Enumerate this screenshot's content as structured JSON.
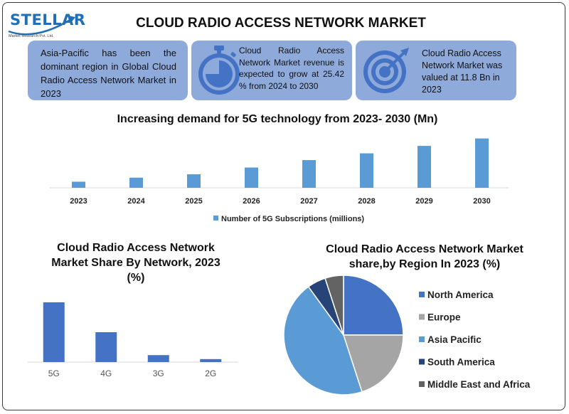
{
  "header": {
    "logo_text": "STELLAR",
    "logo_subtext": "Market Research Pvt. Ltd.",
    "title": "CLOUD RADIO ACCESS NETWORK MARKET"
  },
  "cards": [
    {
      "text": "Asia-Pacific has been the dominant region in Global Cloud Radio Access Network Market in 2023",
      "icon": "none"
    },
    {
      "text": "Cloud Radio Access Network Market revenue is expected to grow at 25.42 % from 2024 to 2030",
      "icon": "stopwatch-icon"
    },
    {
      "text": "Cloud Radio Access Network Market was valued at 11.8 Bn in 2023",
      "icon": "target-icon"
    }
  ],
  "colors": {
    "card_bg": "#8eaadb",
    "bar_blue": "#5b9bd5",
    "bar_dark": "#4472c4",
    "north_america": "#4472c4",
    "europe": "#a5a5a5",
    "asia_pacific": "#5b9bd5",
    "south_america": "#264478",
    "middle_east_africa": "#636363"
  },
  "chart_data": [
    {
      "type": "bar",
      "title": "Increasing demand for 5G technology from 2023- 2030 (Mn)",
      "categories": [
        "2023",
        "2024",
        "2025",
        "2026",
        "2027",
        "2028",
        "2029",
        "2030"
      ],
      "series": [
        {
          "name": "Number of 5G Subscriptions (millions)",
          "values": [
            9,
            15,
            20,
            30,
            41,
            51,
            62,
            73
          ]
        }
      ],
      "ylim": [
        0,
        80
      ],
      "grid": false,
      "legend": "bottom"
    },
    {
      "type": "bar",
      "title": "Cloud Radio Access Network Market Share By Network, 2023 (%)",
      "categories": [
        "5G",
        "4G",
        "3G",
        "2G"
      ],
      "values": [
        60,
        30,
        7,
        3
      ],
      "ylim": [
        0,
        65
      ],
      "grid": false
    },
    {
      "type": "pie",
      "title": "Cloud Radio Access Network Market share,by Region In 2023 (%)",
      "categories": [
        "North America",
        "Europe",
        "Asia Pacific",
        "South America",
        "Middle East and Africa"
      ],
      "values": [
        25,
        20,
        45,
        5,
        5
      ],
      "legend": "right"
    }
  ]
}
